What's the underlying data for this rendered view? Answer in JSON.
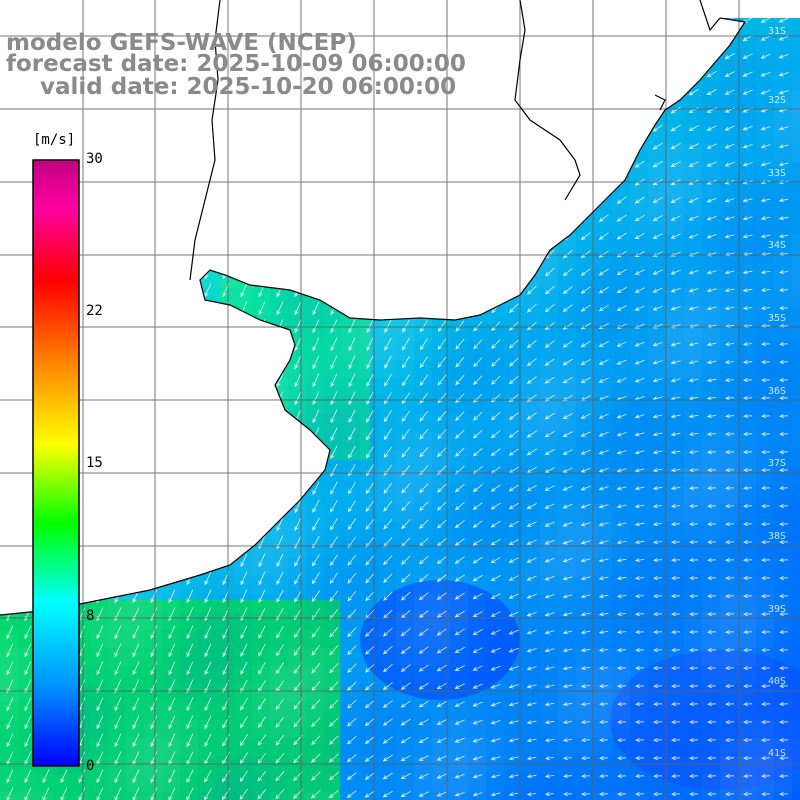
{
  "title": {
    "line1": "modelo GEFS-WAVE (NCEP)",
    "line2": "forecast date: 2025-10-09 06:00:00",
    "line3": "valid date: 2025-10-20 06:00:00"
  },
  "colorbar": {
    "units": "[m/s]",
    "ticks": [
      "30",
      "22",
      "15",
      "8",
      "0"
    ],
    "colors": [
      "#0000ff",
      "#0090ff",
      "#00ffff",
      "#00ff00",
      "#ffff00",
      "#ff8000",
      "#ff0000",
      "#ff00a0",
      "#c00080"
    ]
  },
  "lat_labels": [
    "31S",
    "32S",
    "33S",
    "34S",
    "35S",
    "36S",
    "37S",
    "38S",
    "39S",
    "40S",
    "41S"
  ],
  "colors": {
    "land": "#ffffff",
    "coast": "#000000",
    "grid": "#606060",
    "arrows": "#ffffff",
    "title": "#8a8a8a"
  }
}
